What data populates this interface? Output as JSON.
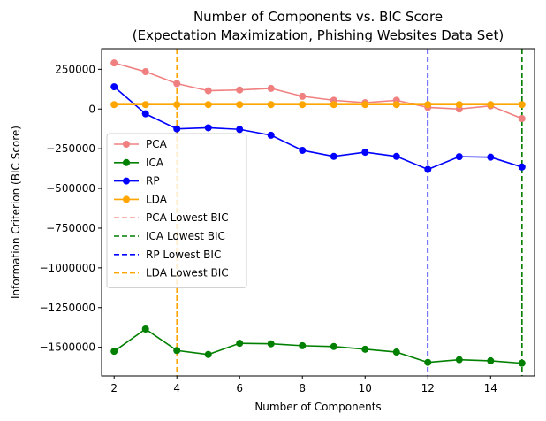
{
  "chart_data": {
    "type": "line",
    "title": [
      "Number of Components vs. BIC Score",
      "(Expectation Maximization, Phishing Websites Data Set)"
    ],
    "xlabel": "Number of Components",
    "ylabel": "Information Criterion (BIC Score)",
    "xlim": [
      1.6,
      15.4
    ],
    "ylim": [
      -1680000,
      380000
    ],
    "xticks": [
      2,
      4,
      6,
      8,
      10,
      12,
      14
    ],
    "xtick_labels": [
      "2",
      "4",
      "6",
      "8",
      "10",
      "12",
      "14"
    ],
    "yticks": [
      250000,
      0,
      -250000,
      -500000,
      -750000,
      -1000000,
      -1250000,
      -1500000
    ],
    "ytick_labels": [
      "250000",
      "0",
      "−250000",
      "−500000",
      "−750000",
      "−1000000",
      "−1250000",
      "−1500000"
    ],
    "x": [
      2,
      3,
      4,
      5,
      6,
      7,
      8,
      9,
      10,
      11,
      12,
      13,
      14,
      15
    ],
    "series": [
      {
        "name": "PCA",
        "color": "#f08080",
        "values": [
          290000,
          235000,
          160000,
          115000,
          120000,
          130000,
          80000,
          55000,
          40000,
          55000,
          10000,
          0,
          20000,
          -60000
        ]
      },
      {
        "name": "ICA",
        "color": "#008000",
        "values": [
          -1525000,
          -1385000,
          -1520000,
          -1545000,
          -1475000,
          -1478000,
          -1490000,
          -1495000,
          -1512000,
          -1530000,
          -1595000,
          -1578000,
          -1585000,
          -1600000
        ]
      },
      {
        "name": "RP",
        "color": "#0000ff",
        "values": [
          140000,
          -30000,
          -125000,
          -118000,
          -128000,
          -165000,
          -260000,
          -298000,
          -272000,
          -298000,
          -380000,
          -300000,
          -303000,
          -365000
        ]
      },
      {
        "name": "LDA",
        "color": "#ffa500",
        "values": [
          28000,
          28000,
          28000,
          28000,
          28000,
          28000,
          28000,
          28000,
          28000,
          28000,
          28000,
          28000,
          28000,
          28000
        ]
      }
    ],
    "vlines": [
      {
        "name": "PCA Lowest BIC",
        "color": "#f08080",
        "x": 15
      },
      {
        "name": "ICA Lowest BIC",
        "color": "#008000",
        "x": 15
      },
      {
        "name": "RP Lowest BIC",
        "color": "#0000ff",
        "x": 12
      },
      {
        "name": "LDA Lowest BIC",
        "color": "#ffa500",
        "x": 4
      }
    ],
    "grid": false,
    "legend_position": "center-left"
  }
}
